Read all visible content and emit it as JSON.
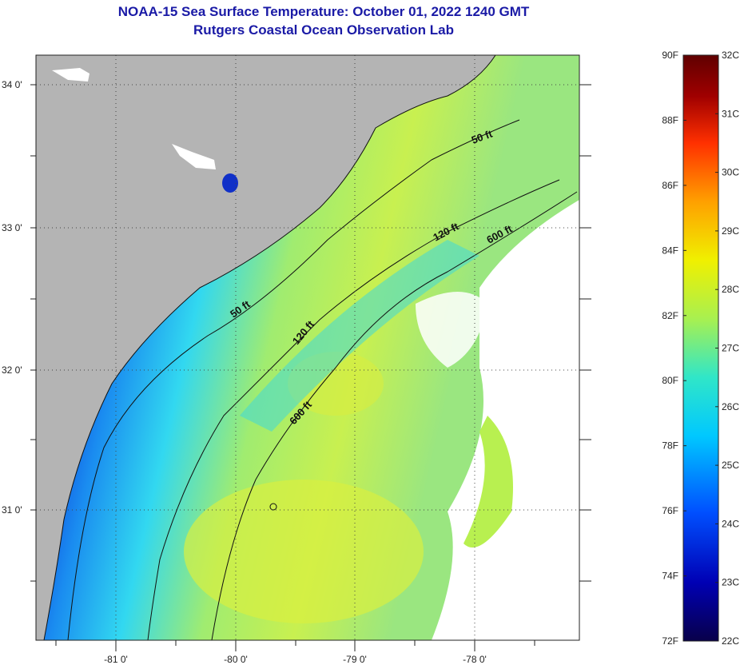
{
  "title": {
    "line1": "NOAA-15 Sea Surface Temperature:  October 01, 2022 1240 GMT",
    "line2": "Rutgers Coastal Ocean Observation Lab"
  },
  "axes": {
    "lat_labels": [
      "34 0'",
      "33 0'",
      "32 0'",
      "31 0'"
    ],
    "lon_labels": [
      "-81 0'",
      "-80 0'",
      "-79 0'",
      "-78 0'"
    ]
  },
  "contours": {
    "c50": "50 ft",
    "c120": "120 ft",
    "c600": "600 ft"
  },
  "colorbar": {
    "fahrenheit": [
      "90F",
      "88F",
      "86F",
      "84F",
      "82F",
      "80F",
      "78F",
      "76F",
      "74F",
      "72F"
    ],
    "celsius": [
      "32C",
      "31C",
      "30C",
      "29C",
      "28C",
      "27C",
      "26C",
      "25C",
      "24C",
      "23C",
      "22C"
    ],
    "colors": [
      "#08004a",
      "#0000b4",
      "#0050ff",
      "#00c8ff",
      "#30e6c8",
      "#a8f050",
      "#f0f000",
      "#ffa000",
      "#ff3000",
      "#a00000",
      "#600000"
    ]
  },
  "map_colors": {
    "land": "#b4b4b4",
    "cloud": "#ffffff",
    "deep_blue": "#0a14b4",
    "cyan": "#32d2f0",
    "yellow_green": "#b4f050"
  }
}
